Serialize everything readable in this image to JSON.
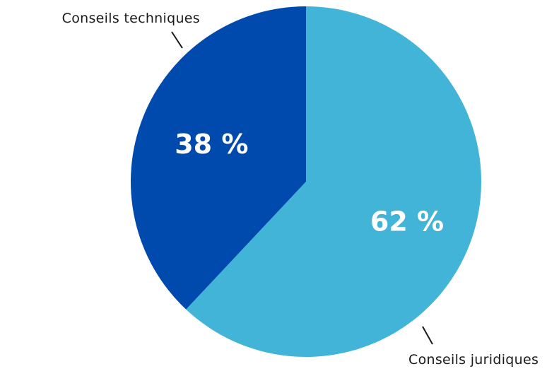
{
  "chart_data": {
    "type": "pie",
    "title": "",
    "slices": [
      {
        "label": "Conseils juridiques",
        "value": 62,
        "value_label": "62 %",
        "color": "#42B4D7"
      },
      {
        "label": "Conseils techniques",
        "value": 38,
        "value_label": "38 %",
        "color": "#004AAD"
      }
    ],
    "start_angle_deg": 0,
    "direction": "clockwise",
    "legend": "none"
  }
}
